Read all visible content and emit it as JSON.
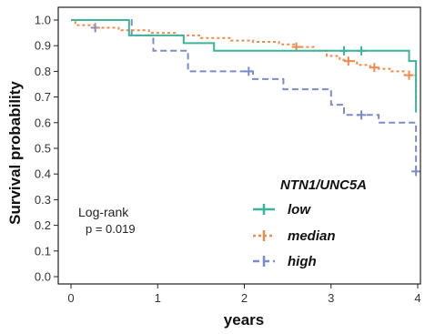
{
  "chart_data": {
    "type": "line",
    "title": "",
    "xlabel": "years",
    "ylabel": "Survival probability",
    "xlim": [
      0,
      4
    ],
    "ylim": [
      0,
      1
    ],
    "xticks": [
      "0",
      "1",
      "2",
      "3",
      "4"
    ],
    "yticks": [
      "0.0",
      "0.1",
      "0.2",
      "0.3",
      "0.4",
      "0.5",
      "0.6",
      "0.7",
      "0.8",
      "0.9",
      "1.0"
    ],
    "grid": false,
    "legend": {
      "title": "NTN1/UNC5A",
      "placement": "bottom-right"
    },
    "annotation": {
      "line1": "Log-rank",
      "line2": "p = 0.019"
    },
    "series": [
      {
        "name": "low",
        "color": "#3cb39a",
        "dash": "solid",
        "steps": [
          [
            0,
            1.0
          ],
          [
            0.67,
            0.97
          ],
          [
            0.67,
            0.94
          ],
          [
            1.3,
            0.94
          ],
          [
            1.3,
            0.91
          ],
          [
            1.65,
            0.91
          ],
          [
            1.65,
            0.88
          ],
          [
            3.9,
            0.88
          ],
          [
            3.9,
            0.84
          ],
          [
            3.98,
            0.84
          ],
          [
            3.98,
            0.64
          ]
        ],
        "censors": [
          [
            3.15,
            0.88
          ],
          [
            3.35,
            0.88
          ]
        ]
      },
      {
        "name": "median",
        "color": "#f08a4b",
        "dash": "dotted",
        "steps": [
          [
            0,
            1.0
          ],
          [
            0.05,
            0.98
          ],
          [
            0.3,
            0.97
          ],
          [
            0.55,
            0.96
          ],
          [
            0.9,
            0.95
          ],
          [
            1.2,
            0.94
          ],
          [
            1.5,
            0.93
          ],
          [
            1.85,
            0.92
          ],
          [
            2.1,
            0.915
          ],
          [
            2.4,
            0.905
          ],
          [
            2.6,
            0.895
          ],
          [
            2.8,
            0.88
          ],
          [
            2.95,
            0.86
          ],
          [
            3.1,
            0.845
          ],
          [
            3.2,
            0.84
          ],
          [
            3.3,
            0.825
          ],
          [
            3.45,
            0.815
          ],
          [
            3.55,
            0.81
          ],
          [
            3.7,
            0.8
          ],
          [
            3.85,
            0.785
          ],
          [
            3.98,
            0.785
          ],
          [
            3.98,
            0.68
          ]
        ],
        "censors": [
          [
            2.6,
            0.895
          ],
          [
            3.2,
            0.84
          ],
          [
            3.5,
            0.815
          ],
          [
            3.9,
            0.785
          ]
        ]
      },
      {
        "name": "high",
        "color": "#7b8ccc",
        "dash": "dashed",
        "steps": [
          [
            0,
            1.0
          ],
          [
            0.7,
            0.94
          ],
          [
            0.95,
            0.94
          ],
          [
            0.95,
            0.88
          ],
          [
            1.35,
            0.88
          ],
          [
            1.35,
            0.8
          ],
          [
            2.1,
            0.8
          ],
          [
            2.1,
            0.77
          ],
          [
            2.45,
            0.77
          ],
          [
            2.45,
            0.73
          ],
          [
            3.0,
            0.73
          ],
          [
            3.0,
            0.67
          ],
          [
            3.15,
            0.67
          ],
          [
            3.15,
            0.63
          ],
          [
            3.55,
            0.63
          ],
          [
            3.55,
            0.6
          ],
          [
            3.98,
            0.6
          ],
          [
            3.98,
            0.41
          ]
        ],
        "censors": [
          [
            0.28,
            0.97
          ],
          [
            2.05,
            0.8
          ],
          [
            3.35,
            0.63
          ],
          [
            3.98,
            0.41
          ]
        ]
      }
    ]
  }
}
